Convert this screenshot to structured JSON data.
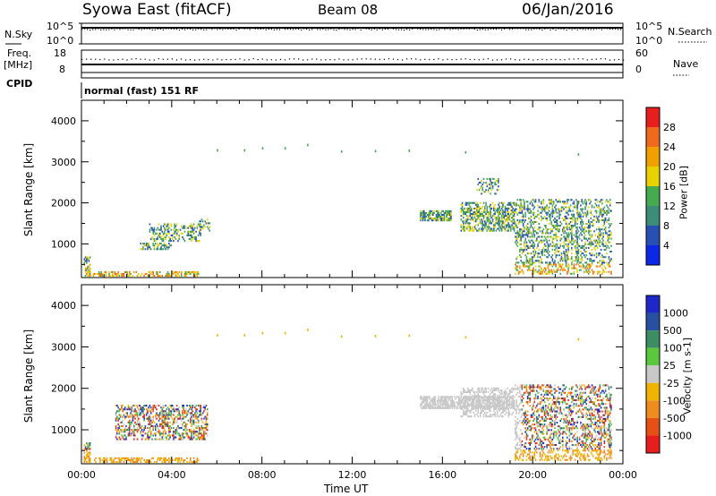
{
  "header": {
    "station": "Syowa East (fitACF)",
    "beam": "Beam 08",
    "date": "06/Jan/2016"
  },
  "info_panels": {
    "nsky_label": "N.Sky",
    "nsky_ticks": [
      "10^5",
      "10^0"
    ],
    "nsearch_label": "N.Search",
    "nsearch_ticks": [
      "10^5",
      "10^0"
    ],
    "freq_label": "Freq.",
    "freq_unit": "[MHz]",
    "freq_ticks": [
      "18",
      "8"
    ],
    "nave_label": "Nave",
    "nave_ticks": [
      "60",
      "0"
    ],
    "cpid_label": "CPID",
    "cpid_text": "normal (fast) 151 RF"
  },
  "chart_data": [
    {
      "type": "heatmap",
      "name": "power",
      "xlabel": "",
      "ylabel": "Slant Range [km]",
      "xlim": [
        0,
        24
      ],
      "ylim": [
        180,
        4500
      ],
      "yticks": [
        "1000",
        "2000",
        "3000",
        "4000"
      ],
      "colorbar_label": "Power [dB]",
      "colorbar_ticks": [
        "4",
        "8",
        "12",
        "16",
        "20",
        "24",
        "28"
      ],
      "colorbar_colors": [
        "#0a28e6",
        "#2850b4",
        "#3c8c78",
        "#46aa50",
        "#e6d200",
        "#f0a000",
        "#ef6a1f",
        "#e61e1e"
      ],
      "echo_regions": [
        {
          "t0": 0.1,
          "t1": 0.4,
          "r0": 200,
          "r1": 700,
          "density": 0.5
        },
        {
          "t0": 0.5,
          "t1": 5.2,
          "r0": 200,
          "r1": 330,
          "density": 0.45
        },
        {
          "t0": 2.6,
          "t1": 4.0,
          "r0": 850,
          "r1": 1050,
          "density": 0.55
        },
        {
          "t0": 3.0,
          "t1": 5.3,
          "r0": 1050,
          "r1": 1500,
          "density": 0.35
        },
        {
          "t0": 5.2,
          "t1": 5.7,
          "r0": 1300,
          "r1": 1600,
          "density": 0.3
        },
        {
          "t0": 15.0,
          "t1": 16.4,
          "r0": 1550,
          "r1": 1800,
          "density": 0.7
        },
        {
          "t0": 16.8,
          "t1": 19.2,
          "r0": 1300,
          "r1": 2000,
          "density": 0.55
        },
        {
          "t0": 17.5,
          "t1": 18.5,
          "r0": 2200,
          "r1": 2600,
          "density": 0.3
        },
        {
          "t0": 19.2,
          "t1": 23.5,
          "r0": 250,
          "r1": 2100,
          "density": 0.35
        }
      ]
    },
    {
      "type": "heatmap",
      "name": "velocity",
      "xlabel": "Time UT",
      "ylabel": "Slant Range [km]",
      "xlim": [
        0,
        24
      ],
      "ylim": [
        180,
        4500
      ],
      "xticks": [
        "00:00",
        "04:00",
        "08:00",
        "12:00",
        "16:00",
        "20:00",
        "00:00"
      ],
      "yticks": [
        "1000",
        "2000",
        "3000",
        "4000"
      ],
      "colorbar_label": "Velocity [m s-1]",
      "colorbar_ticks": [
        "1000",
        "500",
        "100",
        "25",
        "-25",
        "-100",
        "-500",
        "-1000"
      ],
      "colorbar_colors": [
        "#1e28c8",
        "#2850a0",
        "#3c8c64",
        "#5ac83c",
        "#c8c8c8",
        "#f0b400",
        "#f08c1e",
        "#e65014",
        "#e61e1e"
      ],
      "echo_regions": [
        {
          "t0": 0.1,
          "t1": 0.4,
          "r0": 200,
          "r1": 700,
          "density": 0.5
        },
        {
          "t0": 0.5,
          "t1": 5.2,
          "r0": 200,
          "r1": 330,
          "density": 0.45
        },
        {
          "t0": 1.5,
          "t1": 5.6,
          "r0": 750,
          "r1": 1600,
          "density": 0.45
        },
        {
          "t0": 15.0,
          "t1": 19.2,
          "r0": 1500,
          "r1": 1800,
          "density": 0.7
        },
        {
          "t0": 16.8,
          "t1": 19.2,
          "r0": 1300,
          "r1": 2000,
          "density": 0.45
        },
        {
          "t0": 19.2,
          "t1": 23.5,
          "r0": 250,
          "r1": 2100,
          "density": 0.35
        }
      ]
    }
  ]
}
